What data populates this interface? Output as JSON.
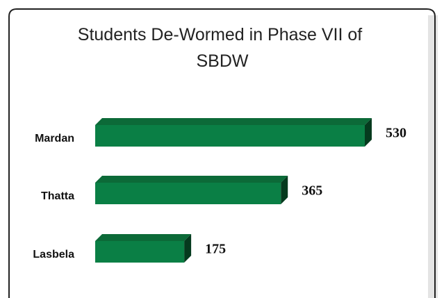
{
  "chart_data": {
    "type": "bar",
    "orientation": "horizontal",
    "title": "Students De-Wormed in Phase VII of SBDW",
    "categories": [
      "Mardan",
      "Thatta",
      "Lasbela"
    ],
    "values": [
      530,
      365,
      175
    ],
    "color": "#0a7f45"
  }
}
